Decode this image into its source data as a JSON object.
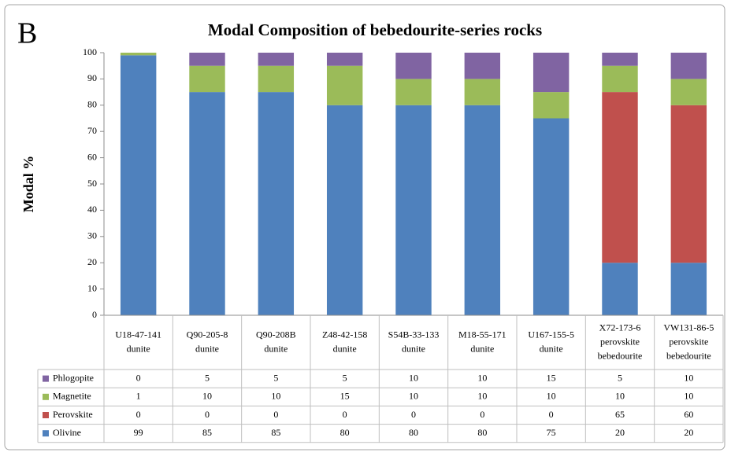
{
  "chart_data": {
    "type": "stacked_bar",
    "panel_label": "B",
    "title": "Modal Composition of bebedourite-series rocks",
    "y_label": "Modal %",
    "categories": [
      [
        "U18-47-141",
        "dunite"
      ],
      [
        "Q90-205-8",
        "dunite"
      ],
      [
        "Q90-208B",
        "dunite"
      ],
      [
        "Z48-42-158",
        "dunite"
      ],
      [
        "S54B-33-133",
        "dunite"
      ],
      [
        "M18-55-171",
        "dunite"
      ],
      [
        "U167-155-5",
        "dunite"
      ],
      [
        "X72-173-6",
        "perovskite",
        "bebedourite"
      ],
      [
        "VW131-86-5",
        "perovskite",
        "bebedourite"
      ]
    ],
    "series": [
      {
        "name": "Olivine",
        "color": "#4f81bd",
        "values": [
          99,
          85,
          85,
          80,
          80,
          80,
          75,
          20,
          20
        ]
      },
      {
        "name": "Perovskite",
        "color": "#c0504d",
        "values": [
          0,
          0,
          0,
          0,
          0,
          0,
          0,
          65,
          60
        ]
      },
      {
        "name": "Magnetite",
        "color": "#9bbb59",
        "values": [
          1,
          10,
          10,
          15,
          10,
          10,
          10,
          10,
          10
        ]
      },
      {
        "name": "Phlogopite",
        "color": "#8064a2",
        "values": [
          0,
          5,
          5,
          5,
          10,
          10,
          15,
          5,
          10
        ]
      }
    ],
    "ylim": [
      0,
      100
    ],
    "yticks": [
      0,
      10,
      20,
      30,
      40,
      50,
      60,
      70,
      80,
      90,
      100
    ],
    "grid": false,
    "data_table": true
  }
}
